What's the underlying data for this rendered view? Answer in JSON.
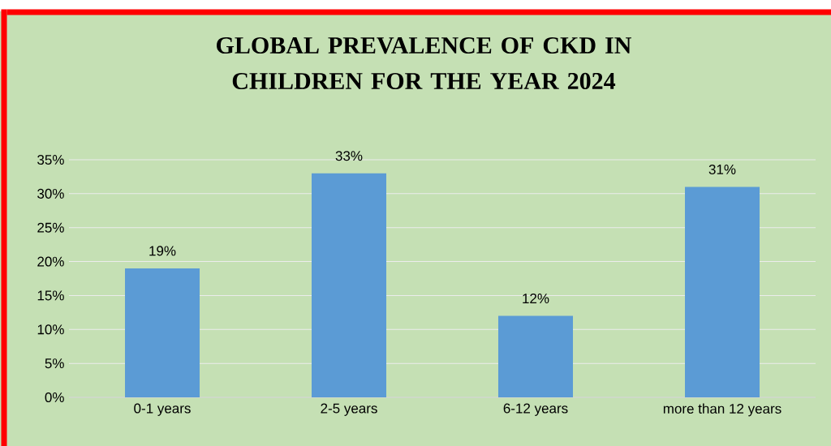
{
  "chart_data": {
    "type": "bar",
    "title": "GLOBAL PREVALENCE  OF CKD IN\nCHILDREN FOR THE YEAR 2024",
    "categories": [
      "0-1 years",
      "2-5 years",
      "6-12 years",
      "more than 12 years"
    ],
    "values": [
      19,
      33,
      12,
      31
    ],
    "value_labels": [
      "19%",
      "33%",
      "12%",
      "31%"
    ],
    "color": "#5b9bd5",
    "ylim": [
      0,
      35
    ],
    "yticks": [
      {
        "value": 0,
        "label": "0%"
      },
      {
        "value": 5,
        "label": "5%"
      },
      {
        "value": 10,
        "label": "10%"
      },
      {
        "value": 15,
        "label": "15%"
      },
      {
        "value": 20,
        "label": "20%"
      },
      {
        "value": 25,
        "label": "25%"
      },
      {
        "value": 30,
        "label": "30%"
      },
      {
        "value": 35,
        "label": "35%"
      }
    ],
    "grid": "y"
  }
}
